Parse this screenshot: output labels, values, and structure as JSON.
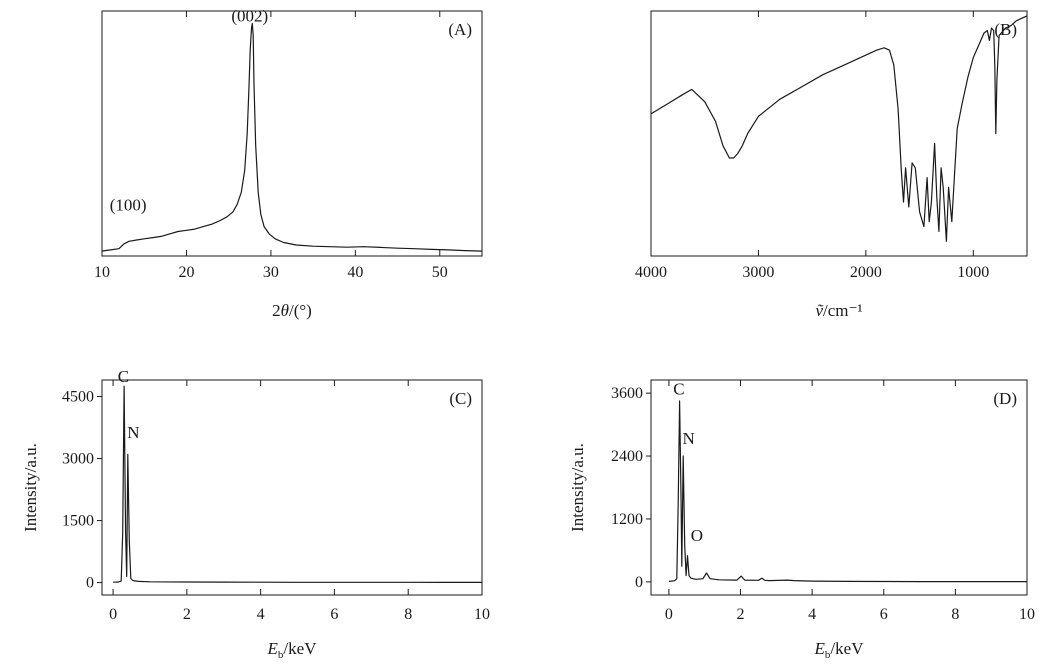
{
  "chart_data": [
    {
      "id": "A",
      "type": "line",
      "panel_label": "(A)",
      "xlabel": "2θ/(°)",
      "ylabel": "",
      "xlim": [
        10,
        55
      ],
      "ylim": [
        0,
        100
      ],
      "xticks": [
        10,
        20,
        30,
        40,
        50
      ],
      "xtick_labels": [
        "10",
        "20",
        "30",
        "40",
        "50"
      ],
      "yticks": [],
      "ytick_labels": [],
      "annotations": [
        {
          "text": "(100)",
          "x": 13.1,
          "y": 17
        },
        {
          "text": "(002)",
          "x": 27.5,
          "y": 94
        }
      ],
      "series": [
        {
          "x": [
            10,
            11,
            12,
            12.6,
            13.2,
            14,
            15,
            16,
            17,
            18,
            19,
            20,
            21,
            22,
            23,
            24,
            24.8,
            25.5,
            26,
            26.5,
            26.9,
            27.2,
            27.4,
            27.55,
            27.7,
            27.8,
            27.9,
            28.0,
            28.2,
            28.5,
            28.8,
            29.2,
            29.8,
            30.5,
            31.5,
            33,
            35,
            37,
            39,
            41,
            43,
            45,
            47,
            49,
            51,
            53,
            55
          ],
          "y": [
            2,
            2.5,
            3,
            5,
            6,
            6.5,
            7,
            7.5,
            8,
            9,
            10,
            10.5,
            11,
            12,
            13,
            14.5,
            16,
            18,
            21,
            26,
            35,
            50,
            68,
            84,
            93,
            95,
            90,
            70,
            45,
            26,
            17,
            12,
            9,
            7,
            5.5,
            4.5,
            4,
            3.8,
            3.6,
            3.8,
            3.5,
            3.2,
            3,
            2.7,
            2.5,
            2.2,
            2
          ]
        }
      ]
    },
    {
      "id": "B",
      "type": "line",
      "panel_label": "(B)",
      "xlabel": "ṽ/cm⁻¹",
      "ylabel": "",
      "xlim": [
        4000,
        500
      ],
      "ylim": [
        0,
        100
      ],
      "xticks": [
        4000,
        3000,
        2000,
        1000
      ],
      "xtick_labels": [
        "4000",
        "3000",
        "2000",
        "1000"
      ],
      "yticks": [],
      "ytick_labels": [],
      "annotations": [],
      "series": [
        {
          "x": [
            4000,
            3850,
            3700,
            3620,
            3500,
            3400,
            3330,
            3270,
            3230,
            3190,
            3150,
            3100,
            3000,
            2800,
            2600,
            2400,
            2200,
            2000,
            1900,
            1830,
            1780,
            1740,
            1700,
            1670,
            1650,
            1630,
            1600,
            1570,
            1540,
            1500,
            1460,
            1430,
            1410,
            1390,
            1360,
            1340,
            1320,
            1300,
            1280,
            1250,
            1230,
            1200,
            1150,
            1100,
            1050,
            1000,
            950,
            900,
            870,
            850,
            830,
            810,
            800,
            790,
            780,
            760,
            700,
            650,
            600,
            550,
            500
          ],
          "y": [
            58,
            62,
            66,
            68,
            63,
            55,
            45,
            40,
            40,
            42,
            45,
            50,
            57,
            64,
            69,
            74,
            78,
            82,
            84,
            85,
            84,
            78,
            60,
            35,
            22,
            36,
            20,
            38,
            36,
            18,
            12,
            32,
            14,
            22,
            46,
            24,
            10,
            36,
            28,
            6,
            28,
            14,
            52,
            63,
            73,
            81,
            86,
            91,
            92,
            88,
            93,
            92,
            78,
            50,
            72,
            90,
            93,
            94,
            96,
            97,
            98
          ]
        }
      ]
    },
    {
      "id": "C",
      "type": "line",
      "panel_label": "(C)",
      "xlabel": "Eb/keV",
      "ylabel": "Intensity/a.u.",
      "xlim": [
        -0.3,
        10
      ],
      "ylim": [
        -300,
        4900
      ],
      "xticks": [
        0,
        2,
        4,
        6,
        8,
        10
      ],
      "xtick_labels": [
        "0",
        "2",
        "4",
        "6",
        "8",
        "10"
      ],
      "yticks": [
        0,
        1500,
        3000,
        4500
      ],
      "ytick_labels": [
        "0",
        "1500",
        "3000",
        "4500"
      ],
      "annotations": [
        {
          "text": "C",
          "x": 0.28,
          "y": 4750
        },
        {
          "text": "N",
          "x": 0.55,
          "y": 3400
        }
      ],
      "series": [
        {
          "x": [
            0,
            0.15,
            0.22,
            0.26,
            0.3,
            0.34,
            0.37,
            0.4,
            0.44,
            0.48,
            0.52,
            0.58,
            0.7,
            1,
            2,
            3,
            4,
            5,
            6,
            7,
            8,
            9,
            10
          ],
          "y": [
            10,
            15,
            40,
            1200,
            4750,
            1200,
            150,
            3100,
            1000,
            100,
            60,
            40,
            30,
            20,
            15,
            12,
            10,
            8,
            7,
            6,
            6,
            5,
            5
          ]
        }
      ]
    },
    {
      "id": "D",
      "type": "line",
      "panel_label": "(D)",
      "xlabel": "Eb/keV",
      "ylabel": "Intensity/a.u.",
      "xlim": [
        -0.5,
        10
      ],
      "ylim": [
        -250,
        3850
      ],
      "xticks": [
        0,
        2,
        4,
        6,
        8,
        10
      ],
      "xtick_labels": [
        "0",
        "2",
        "4",
        "6",
        "8",
        "10"
      ],
      "yticks": [
        0,
        1200,
        2400,
        3600
      ],
      "ytick_labels": [
        "0",
        "1200",
        "2400",
        "3600"
      ],
      "annotations": [
        {
          "text": "C",
          "x": 0.28,
          "y": 3500
        },
        {
          "text": "N",
          "x": 0.55,
          "y": 2550
        },
        {
          "text": "O",
          "x": 0.78,
          "y": 700
        }
      ],
      "series": [
        {
          "x": [
            0,
            0.15,
            0.22,
            0.26,
            0.3,
            0.34,
            0.36,
            0.4,
            0.44,
            0.48,
            0.52,
            0.56,
            0.62,
            0.75,
            0.95,
            1.05,
            1.15,
            1.4,
            1.9,
            2.02,
            2.12,
            2.5,
            2.6,
            2.68,
            2.8,
            3.3,
            3.5,
            4,
            5,
            6,
            7,
            8,
            9,
            10
          ],
          "y": [
            10,
            20,
            60,
            1500,
            3450,
            1500,
            300,
            2400,
            700,
            120,
            500,
            120,
            70,
            50,
            60,
            170,
            60,
            40,
            35,
            110,
            35,
            30,
            70,
            30,
            25,
            35,
            25,
            15,
            10,
            8,
            6,
            6,
            5,
            5
          ]
        }
      ]
    }
  ]
}
